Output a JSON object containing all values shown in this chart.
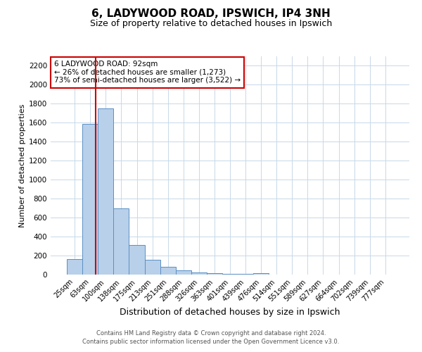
{
  "title": "6, LADYWOOD ROAD, IPSWICH, IP4 3NH",
  "subtitle": "Size of property relative to detached houses in Ipswich",
  "xlabel": "Distribution of detached houses by size in Ipswich",
  "ylabel": "Number of detached properties",
  "bar_labels": [
    "25sqm",
    "63sqm",
    "100sqm",
    "138sqm",
    "175sqm",
    "213sqm",
    "251sqm",
    "288sqm",
    "326sqm",
    "363sqm",
    "401sqm",
    "439sqm",
    "476sqm",
    "514sqm",
    "551sqm",
    "589sqm",
    "627sqm",
    "664sqm",
    "702sqm",
    "739sqm",
    "777sqm"
  ],
  "bar_values": [
    160,
    1590,
    1750,
    700,
    315,
    155,
    80,
    45,
    20,
    15,
    10,
    5,
    15,
    0,
    0,
    0,
    0,
    0,
    0,
    0,
    0
  ],
  "bar_color": "#b8d0ea",
  "bar_edge_color": "#5a8fc4",
  "vline_x_offset": 1.35,
  "vline_color": "#cc0000",
  "ylim": [
    0,
    2300
  ],
  "yticks": [
    0,
    200,
    400,
    600,
    800,
    1000,
    1200,
    1400,
    1600,
    1800,
    2000,
    2200
  ],
  "annotation_title": "6 LADYWOOD ROAD: 92sqm",
  "annotation_line1": "← 26% of detached houses are smaller (1,273)",
  "annotation_line2": "73% of semi-detached houses are larger (3,522) →",
  "annotation_box_edge": "#cc0000",
  "footer_line1": "Contains HM Land Registry data © Crown copyright and database right 2024.",
  "footer_line2": "Contains public sector information licensed under the Open Government Licence v3.0.",
  "background_color": "#ffffff",
  "grid_color": "#c8d8e8",
  "title_fontsize": 11,
  "subtitle_fontsize": 9,
  "ylabel_fontsize": 8,
  "xlabel_fontsize": 9
}
